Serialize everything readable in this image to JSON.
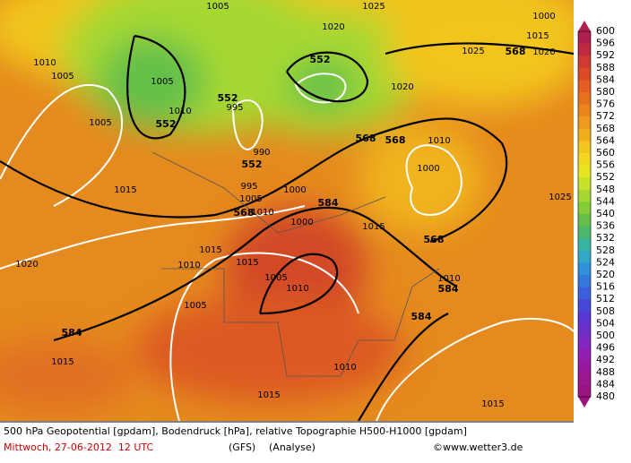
{
  "colorbar": {
    "labels": [
      "600",
      "596",
      "592",
      "588",
      "584",
      "580",
      "576",
      "572",
      "568",
      "564",
      "560",
      "556",
      "552",
      "548",
      "544",
      "540",
      "536",
      "532",
      "528",
      "524",
      "520",
      "516",
      "512",
      "508",
      "504",
      "500",
      "496",
      "492",
      "488",
      "484",
      "480"
    ],
    "colors": [
      "#b0204e",
      "#c02a40",
      "#d03a30",
      "#dc4a26",
      "#e25e22",
      "#e6721e",
      "#ea861c",
      "#ee9a1c",
      "#f0ae1c",
      "#f2c41e",
      "#f2d820",
      "#e8e620",
      "#c8e22a",
      "#a6d830",
      "#84cc38",
      "#64c04a",
      "#4cb86a",
      "#38b4a0",
      "#30a8c8",
      "#3090d8",
      "#3478dc",
      "#3c60dc",
      "#4848d8",
      "#5838d0",
      "#6c30c8",
      "#8028c0",
      "#9020b0",
      "#9818a0",
      "#9c1890",
      "#9a1480"
    ]
  },
  "contour_labels": [
    "552",
    "552",
    "552",
    "552",
    "568",
    "568",
    "568",
    "568",
    "568",
    "584",
    "584",
    "584",
    "584",
    "1005",
    "1025",
    "1020",
    "1010",
    "1005",
    "1005",
    "1010",
    "995",
    "1005",
    "990",
    "995",
    "1005",
    "1010",
    "1000",
    "1000",
    "1015",
    "1015",
    "1015",
    "1005",
    "1010",
    "1010",
    "1005",
    "1020",
    "1015",
    "1010",
    "1015",
    "1015",
    "1015",
    "1010",
    "1000",
    "1010",
    "1025",
    "1020",
    "1025",
    "1015",
    "1000",
    "1020"
  ],
  "footer": {
    "description": "500 hPa Geopotential [gpdam], Bodendruck [hPa], relative Topographie H500-H1000 [gpdam]",
    "date": "Mittwoch, 27-06-2012  12 UTC",
    "model": "(GFS)",
    "analysis": "(Analyse)",
    "credit": "©www.wetter3.de"
  }
}
